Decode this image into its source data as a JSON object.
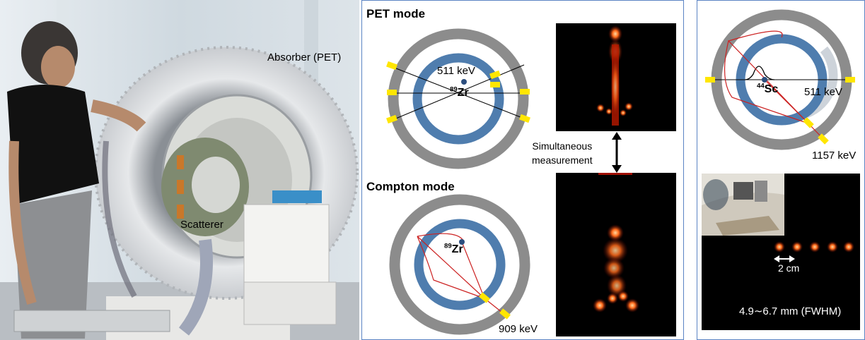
{
  "photo": {
    "absorber_label": "Absorber (PET)",
    "scatterer_label": "Scatterer"
  },
  "pet_mode": {
    "title": "PET mode",
    "energy_label": "511 keV",
    "isotope_mass": "89",
    "isotope_symbol": "Zr"
  },
  "compton_mode": {
    "title": "Compton mode",
    "isotope_mass": "89",
    "isotope_symbol": "Zr",
    "energy_label": "909 keV"
  },
  "simultaneous": {
    "line1": "Simultaneous",
    "line2": "measurement"
  },
  "sc_panel": {
    "isotope_mass": "44",
    "isotope_symbol": "Sc",
    "energy_511": "511 keV",
    "energy_1157": "1157 keV",
    "distance_label": "2 cm",
    "resolution_label": "4.9∼6.7 mm (FWHM)"
  },
  "colors": {
    "outer_ring": "#8c8c8c",
    "inner_ring": "#4f7dae",
    "detector": "#ffe600",
    "compton_cone": "#cc2222",
    "panel_border": "#5b84c4"
  }
}
